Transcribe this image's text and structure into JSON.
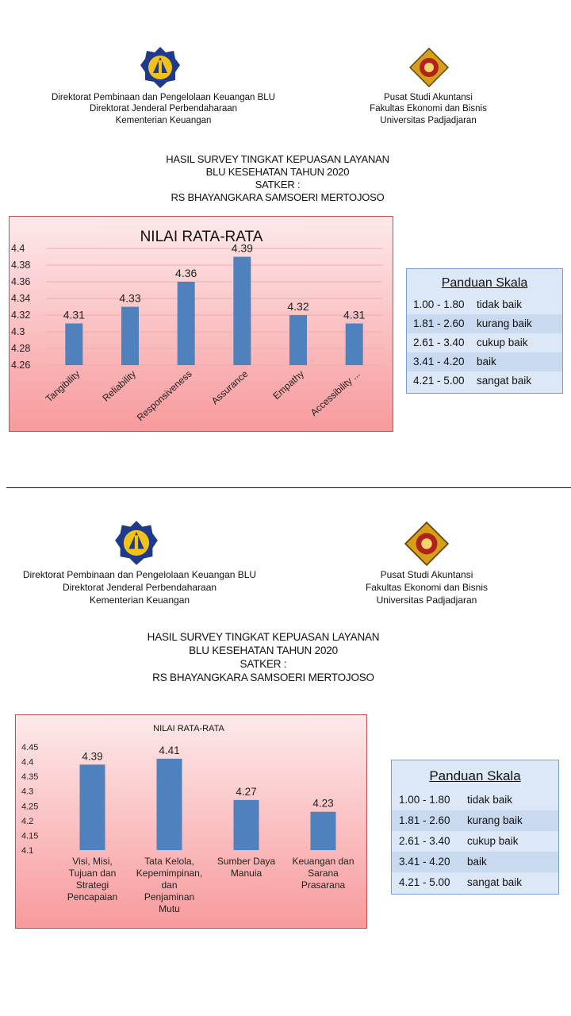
{
  "sections": [
    {
      "header_left": [
        "Direktorat Pembinaan dan Pengelolaan Keuangan BLU",
        "Direktorat Jenderal Perbendaharaan",
        "Kementerian Keuangan"
      ],
      "header_right": [
        "Pusat Studi Akuntansi",
        "Fakultas Ekonomi dan Bisnis",
        "Universitas Padjadjaran"
      ],
      "title_lines": [
        "HASIL SURVEY TINGKAT KEPUASAN LAYANAN",
        "BLU KESEHATAN TAHUN 2020",
        "SATKER :",
        "RS BHAYANGKARA SAMSOERI MERTOJOSO"
      ],
      "legend": {
        "title": "Panduan Skala",
        "rows": [
          {
            "range": "1.00 - 1.80",
            "label": "tidak baik"
          },
          {
            "range": "1.81 - 2.60",
            "label": "kurang baik"
          },
          {
            "range": "2.61 - 3.40",
            "label": "cukup baik"
          },
          {
            "range": "3.41 - 4.20",
            "label": "baik"
          },
          {
            "range": "4.21 - 5.00",
            "label": "sangat baik"
          }
        ]
      }
    },
    {
      "header_left": [
        "Direktorat Pembinaan dan Pengelolaan Keuangan BLU",
        "Direktorat Jenderal Perbendaharaan",
        "Kementerian Keuangan"
      ],
      "header_right": [
        "Pusat Studi Akuntansi",
        "Fakultas Ekonomi dan Bisnis",
        "Universitas Padjadjaran"
      ],
      "title_lines": [
        "HASIL SURVEY TINGKAT KEPUASAN LAYANAN",
        "BLU KESEHATAN TAHUN 2020",
        "SATKER :",
        "RS BHAYANGKARA SAMSOERI MERTOJOSO"
      ],
      "legend": {
        "title": "Panduan Skala",
        "rows": [
          {
            "range": "1.00 - 1.80",
            "label": "tidak baik"
          },
          {
            "range": "1.81 - 2.60",
            "label": "kurang baik"
          },
          {
            "range": "2.61 - 3.40",
            "label": "cukup baik"
          },
          {
            "range": "3.41 - 4.20",
            "label": "baik"
          },
          {
            "range": "4.21 - 5.00",
            "label": "sangat baik"
          }
        ]
      }
    }
  ],
  "colors": {
    "bar": "#4f81bd",
    "chart_border": "#c0504d",
    "legend_bg": "#dce8f7",
    "legend_border": "#7aa0cf",
    "logo_kemenkeu": "#1f3a8a",
    "logo_unpad": "#d4a017"
  },
  "icons": {
    "left_logo": "kementerian-keuangan-logo",
    "right_logo": "universitas-padjadjaran-logo"
  },
  "chart_data": [
    {
      "type": "bar",
      "title": "NILAI RATA-RATA",
      "categories": [
        "Tangibility",
        "Reliability",
        "Responsiveness",
        "Assurance",
        "Empathy",
        "Accessibility ..."
      ],
      "values": [
        4.31,
        4.33,
        4.36,
        4.39,
        4.32,
        4.31
      ],
      "value_labels": [
        "4.31",
        "4.33",
        "4.36",
        "4.39",
        "4.32",
        "4.31"
      ],
      "yticks": [
        "4.26",
        "4.28",
        "4.3",
        "4.32",
        "4.34",
        "4.36",
        "4.38",
        "4.4"
      ],
      "ylim": [
        4.26,
        4.4
      ],
      "grid": true,
      "xlabel": "",
      "ylabel": ""
    },
    {
      "type": "bar",
      "title": "NILAI RATA-RATA",
      "categories": [
        "Visi, Misi, Tujuan dan Strategi Pencapaian",
        "Tata Kelola, Kepemimpinan, dan Penjaminan Mutu",
        "Sumber Daya Manuia",
        "Keuangan dan Sarana Prasarana"
      ],
      "category_lines": [
        [
          "Visi, Misi,",
          "Tujuan dan",
          "Strategi",
          "Pencapaian"
        ],
        [
          "Tata Kelola,",
          "Kepemimpinan,",
          "dan",
          "Penjaminan",
          "Mutu"
        ],
        [
          "Sumber Daya",
          "Manuia"
        ],
        [
          "Keuangan dan",
          "Sarana",
          "Prasarana"
        ]
      ],
      "values": [
        4.39,
        4.41,
        4.27,
        4.23
      ],
      "value_labels": [
        "4.39",
        "4.41",
        "4.27",
        "4.23"
      ],
      "yticks": [
        "4.1",
        "4.15",
        "4.2",
        "4.25",
        "4.3",
        "4.35",
        "4.4",
        "4.45"
      ],
      "ylim": [
        4.1,
        4.45
      ],
      "grid": false,
      "xlabel": "",
      "ylabel": ""
    }
  ]
}
